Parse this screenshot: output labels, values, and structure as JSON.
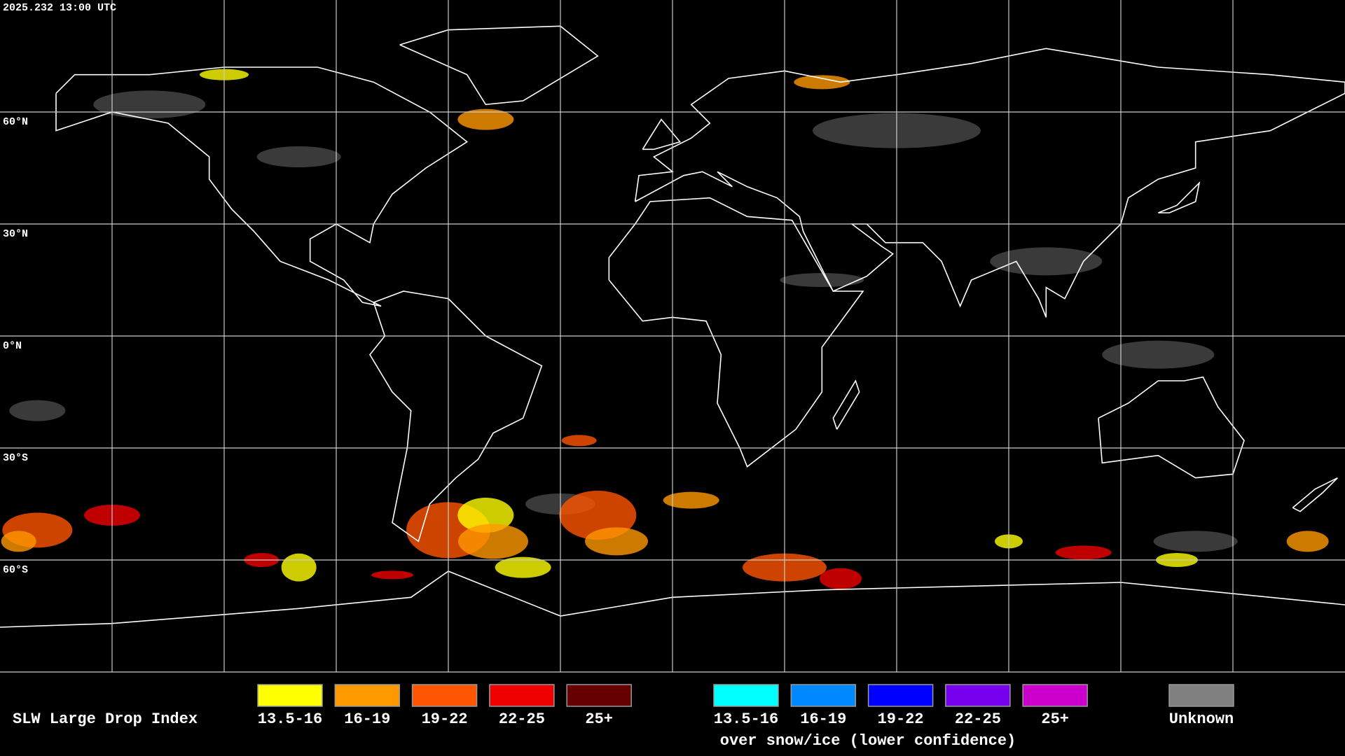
{
  "header": {
    "timestamp": "2025.232 13:00 UTC"
  },
  "map": {
    "latitude_labels": [
      "60°N",
      "30°N",
      "0°N",
      "30°S",
      "60°S"
    ]
  },
  "legend": {
    "title": "SLW Large Drop Index",
    "land": [
      {
        "label": "13.5-16",
        "color": "#ffff00"
      },
      {
        "label": "16-19",
        "color": "#ff9900"
      },
      {
        "label": "19-22",
        "color": "#ff5500"
      },
      {
        "label": "22-25",
        "color": "#ee0000"
      },
      {
        "label": "25+",
        "color": "#660000"
      }
    ],
    "snow_ice": [
      {
        "label": "13.5-16",
        "color": "#00ffff"
      },
      {
        "label": "16-19",
        "color": "#0088ff"
      },
      {
        "label": "19-22",
        "color": "#0000ff"
      },
      {
        "label": "22-25",
        "color": "#7700ee"
      },
      {
        "label": "25+",
        "color": "#cc00cc"
      }
    ],
    "snow_ice_note": "over snow/ice (lower confidence)",
    "unknown": {
      "label": "Unknown",
      "color": "#808080"
    }
  }
}
